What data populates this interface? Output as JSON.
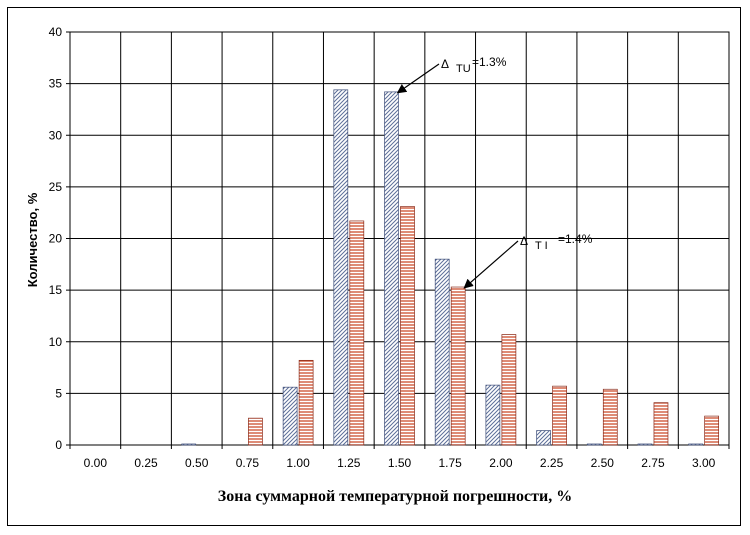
{
  "chart_data": {
    "type": "bar",
    "title": "",
    "xlabel": "Зона суммарной температурной погрешности, %",
    "ylabel": "Количество, %",
    "ylim": [
      0,
      40
    ],
    "yticks": [
      0,
      5,
      10,
      15,
      20,
      25,
      30,
      35,
      40
    ],
    "grid": true,
    "legend": "none",
    "categories": [
      "0.00",
      "0.25",
      "0.50",
      "0.75",
      "1.00",
      "1.25",
      "1.50",
      "1.75",
      "2.00",
      "2.25",
      "2.50",
      "2.75",
      "3.00"
    ],
    "series": [
      {
        "color": "#aebfd9",
        "pattern": "diagonal-hatch",
        "values": [
          0,
          0,
          0.1,
          0,
          5.6,
          34.4,
          34.2,
          18.0,
          5.8,
          1.4,
          0.1,
          0.1,
          0.1
        ]
      },
      {
        "color": "#d05a3c",
        "pattern": "horizontal-lines",
        "values": [
          0,
          0,
          0,
          2.6,
          8.2,
          21.7,
          23.1,
          15.3,
          10.7,
          5.7,
          5.4,
          4.1,
          2.8
        ]
      }
    ],
    "annotations": [
      {
        "symbol": "Δ",
        "subscript": "TU",
        "text": "=1.3%",
        "target_series": 0,
        "target_category": "1.50"
      },
      {
        "symbol": "Δ",
        "subscript": "T I",
        "text": "=1.4%",
        "target_series": 1,
        "target_category": "1.75"
      }
    ]
  }
}
